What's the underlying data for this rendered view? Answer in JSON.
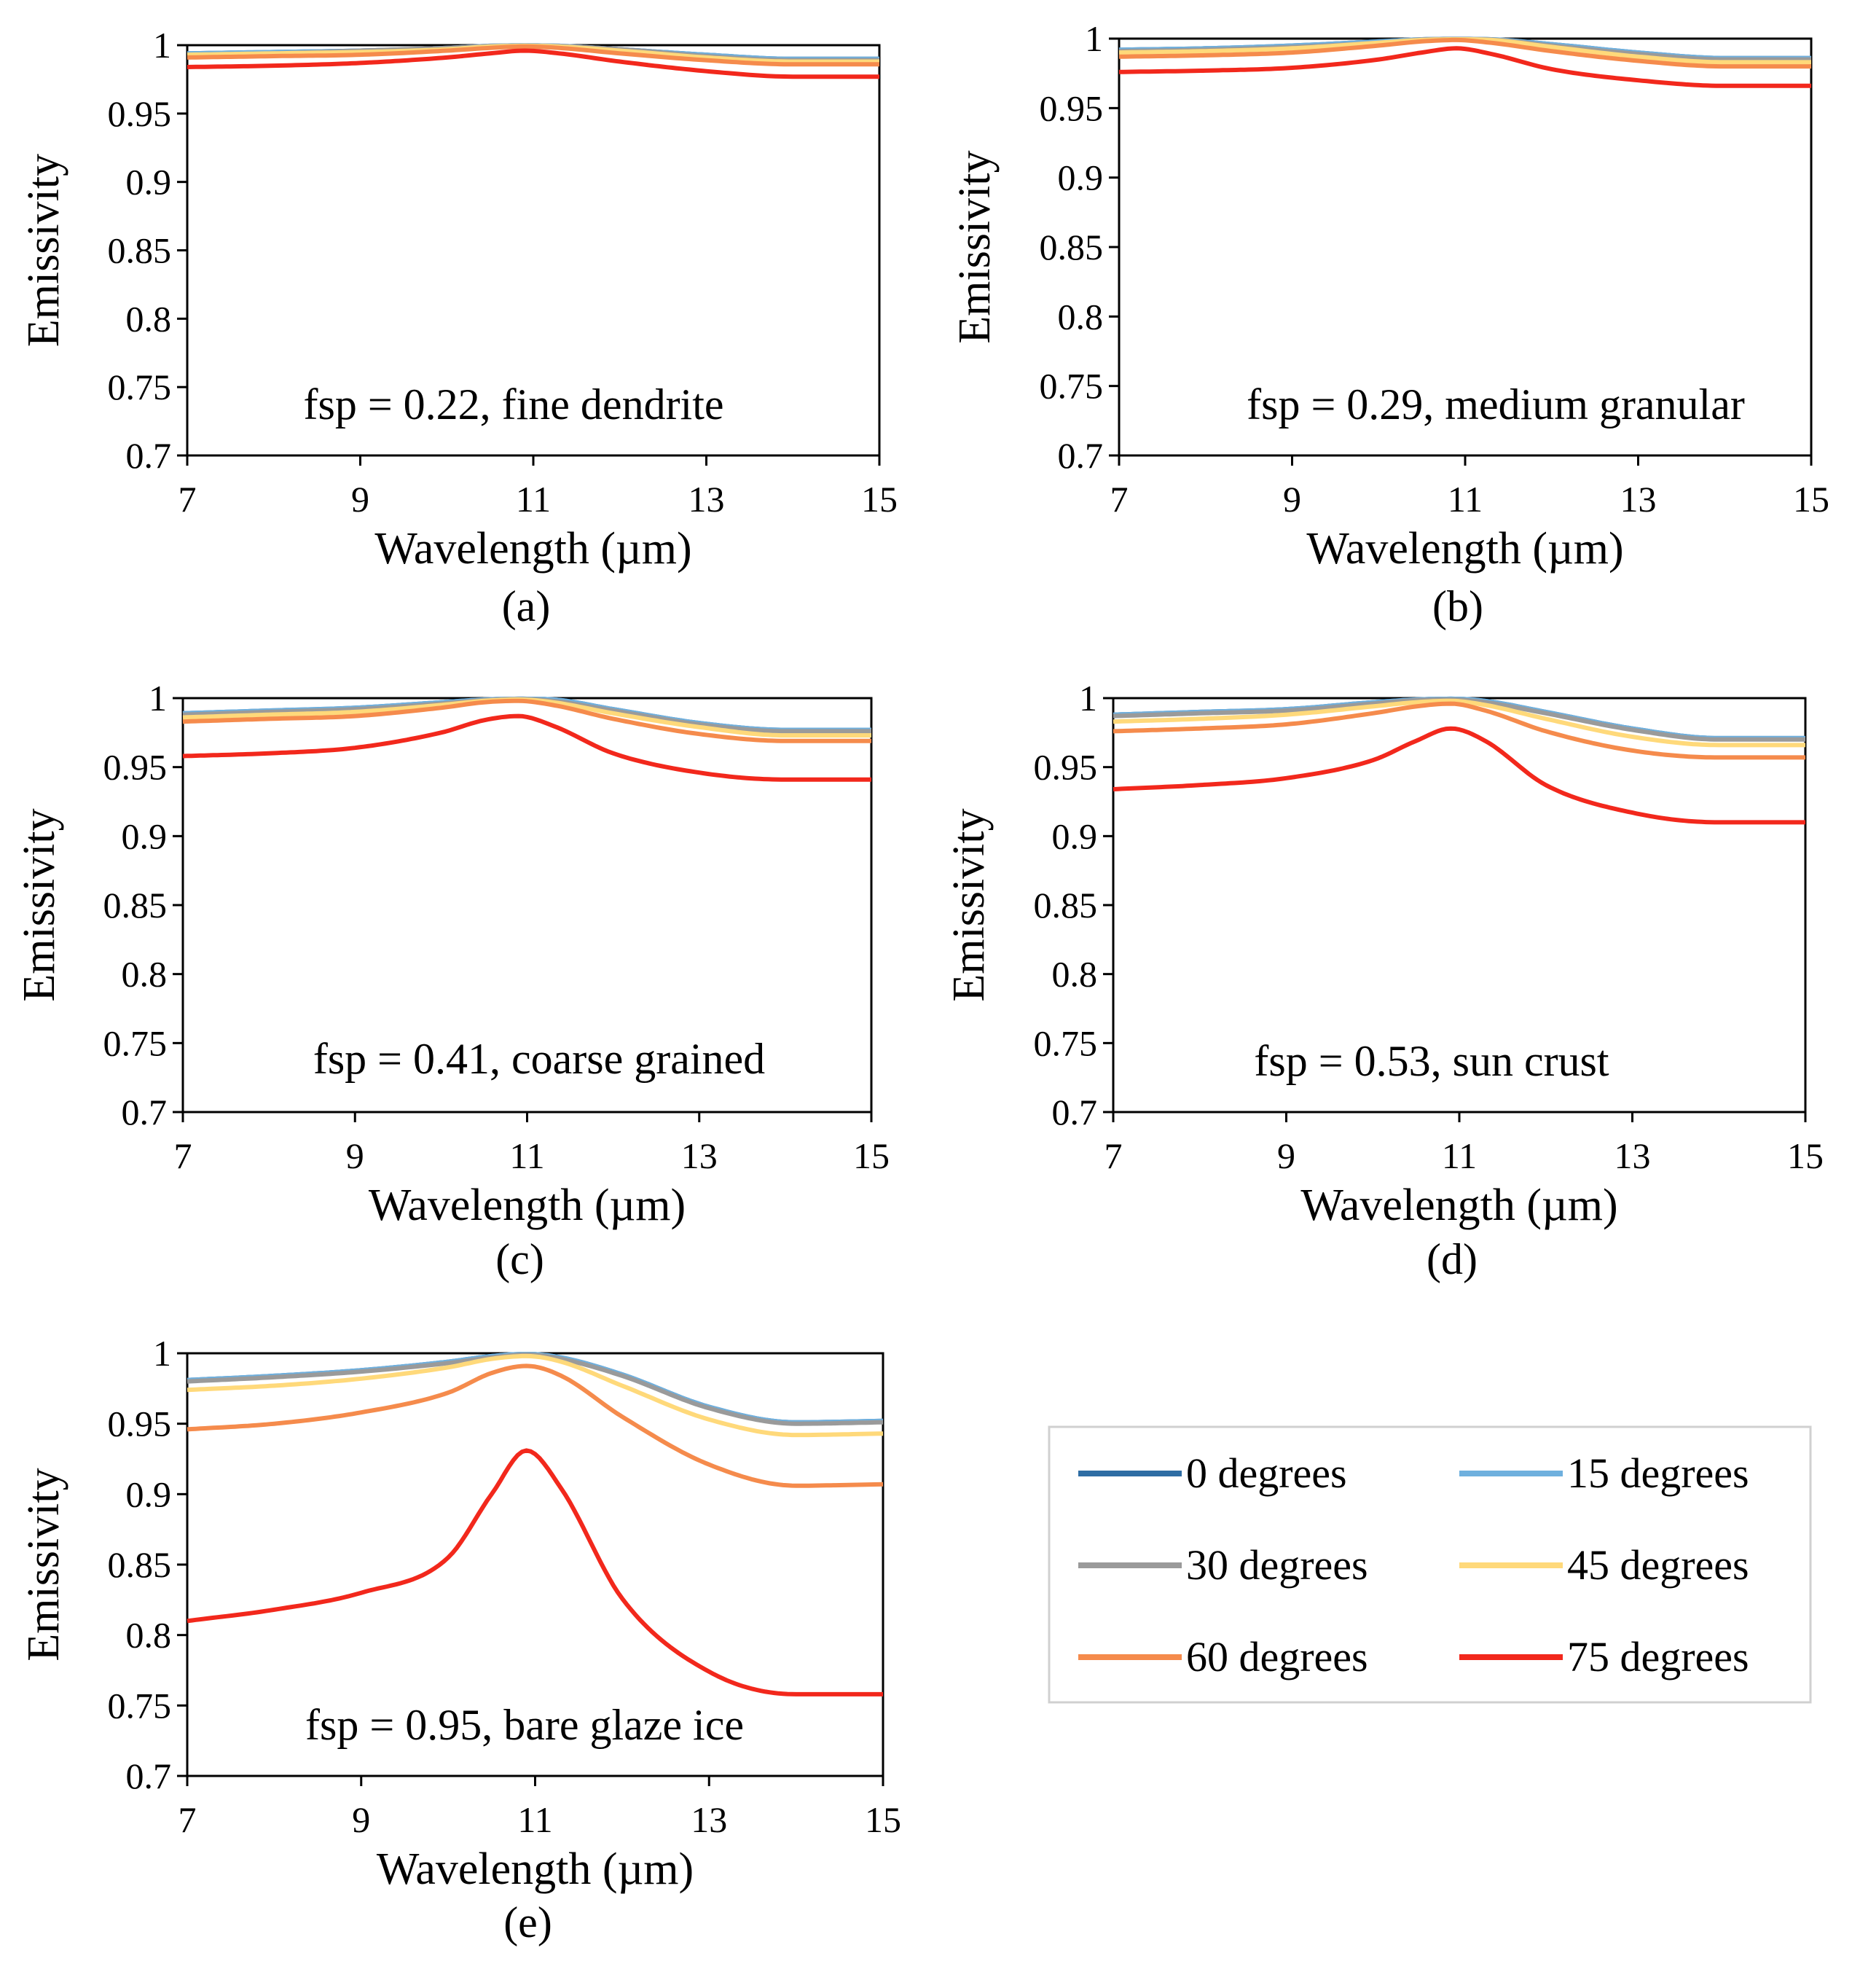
{
  "figure": {
    "legend": {
      "entries": [
        {
          "label": "0 degrees",
          "color": "#2E6DA4"
        },
        {
          "label": "15 degrees",
          "color": "#6FB0DE"
        },
        {
          "label": "30 degrees",
          "color": "#9A9A9A"
        },
        {
          "label": "45 degrees",
          "color": "#FFD97A"
        },
        {
          "label": "60 degrees",
          "color": "#F58B4C"
        },
        {
          "label": "75 degrees",
          "color": "#F2281C"
        }
      ]
    }
  },
  "chart_data": [
    {
      "type": "line",
      "panel": "(a)",
      "annotation": "fsp = 0.22, fine dendrite",
      "xlabel": "Wavelength (µm)",
      "ylabel": "Emissivity",
      "xlim": [
        7,
        15
      ],
      "ylim": [
        0.7,
        1.0
      ],
      "xticks": [
        "7",
        "9",
        "11",
        "13",
        "15"
      ],
      "yticks": [
        "0.7",
        "0.75",
        "0.8",
        "0.85",
        "0.9",
        "0.95",
        "1"
      ],
      "x": [
        7,
        8,
        9,
        10,
        10.5,
        10.9,
        11.3,
        12,
        13,
        14,
        15
      ],
      "series": [
        {
          "name": "0 degrees",
          "values": [
            0.994,
            0.995,
            0.996,
            0.998,
            0.9995,
            0.9998,
            0.9995,
            0.997,
            0.993,
            0.99,
            0.99
          ]
        },
        {
          "name": "15 degrees",
          "values": [
            0.994,
            0.995,
            0.996,
            0.998,
            0.9995,
            0.9998,
            0.9995,
            0.997,
            0.993,
            0.99,
            0.99
          ]
        },
        {
          "name": "30 degrees",
          "values": [
            0.993,
            0.994,
            0.996,
            0.998,
            0.9993,
            0.9997,
            0.9993,
            0.997,
            0.992,
            0.989,
            0.989
          ]
        },
        {
          "name": "45 degrees",
          "values": [
            0.993,
            0.994,
            0.995,
            0.997,
            0.999,
            0.9995,
            0.999,
            0.996,
            0.991,
            0.988,
            0.988
          ]
        },
        {
          "name": "60 degrees",
          "values": [
            0.991,
            0.992,
            0.993,
            0.996,
            0.998,
            0.999,
            0.998,
            0.994,
            0.989,
            0.986,
            0.986
          ]
        },
        {
          "name": "75 degrees",
          "values": [
            0.984,
            0.985,
            0.987,
            0.991,
            0.994,
            0.996,
            0.994,
            0.988,
            0.981,
            0.977,
            0.977
          ]
        }
      ]
    },
    {
      "type": "line",
      "panel": "(b)",
      "annotation": "fsp = 0.29, medium granular",
      "xlabel": "Wavelength (µm)",
      "ylabel": "Emissivity",
      "xlim": [
        7,
        15
      ],
      "ylim": [
        0.7,
        1.0
      ],
      "xticks": [
        "7",
        "9",
        "11",
        "13",
        "15"
      ],
      "yticks": [
        "0.7",
        "0.75",
        "0.8",
        "0.85",
        "0.9",
        "0.95",
        "1"
      ],
      "x": [
        7,
        8,
        9,
        10,
        10.5,
        10.9,
        11.3,
        12,
        13,
        14,
        15
      ],
      "series": [
        {
          "name": "0 degrees",
          "values": [
            0.992,
            0.993,
            0.995,
            0.998,
            0.9995,
            0.9998,
            0.9995,
            0.996,
            0.99,
            0.986,
            0.986
          ]
        },
        {
          "name": "15 degrees",
          "values": [
            0.992,
            0.993,
            0.995,
            0.998,
            0.9995,
            0.9998,
            0.9995,
            0.996,
            0.99,
            0.986,
            0.986
          ]
        },
        {
          "name": "30 degrees",
          "values": [
            0.991,
            0.992,
            0.994,
            0.997,
            0.9993,
            0.9997,
            0.9993,
            0.995,
            0.989,
            0.985,
            0.985
          ]
        },
        {
          "name": "45 degrees",
          "values": [
            0.99,
            0.991,
            0.993,
            0.997,
            0.999,
            0.9995,
            0.999,
            0.994,
            0.987,
            0.983,
            0.983
          ]
        },
        {
          "name": "60 degrees",
          "values": [
            0.987,
            0.988,
            0.99,
            0.995,
            0.998,
            0.999,
            0.997,
            0.991,
            0.984,
            0.98,
            0.98
          ]
        },
        {
          "name": "75 degrees",
          "values": [
            0.976,
            0.977,
            0.979,
            0.985,
            0.99,
            0.993,
            0.989,
            0.978,
            0.97,
            0.966,
            0.966
          ]
        }
      ]
    },
    {
      "type": "line",
      "panel": "(c)",
      "annotation": "fsp = 0.41, coarse grained",
      "xlabel": "Wavelength (µm)",
      "ylabel": "Emissivity",
      "xlim": [
        7,
        15
      ],
      "ylim": [
        0.7,
        1.0
      ],
      "xticks": [
        "7",
        "9",
        "11",
        "13",
        "15"
      ],
      "yticks": [
        "0.7",
        "0.75",
        "0.8",
        "0.85",
        "0.9",
        "0.95",
        "1"
      ],
      "x": [
        7,
        8,
        9,
        10,
        10.5,
        10.9,
        11.3,
        12,
        13,
        14,
        15
      ],
      "series": [
        {
          "name": "0 degrees",
          "values": [
            0.989,
            0.991,
            0.993,
            0.997,
            0.999,
            0.9995,
            0.999,
            0.992,
            0.982,
            0.977,
            0.977
          ]
        },
        {
          "name": "15 degrees",
          "values": [
            0.989,
            0.991,
            0.993,
            0.997,
            0.999,
            0.9995,
            0.999,
            0.992,
            0.982,
            0.977,
            0.977
          ]
        },
        {
          "name": "30 degrees",
          "values": [
            0.988,
            0.99,
            0.992,
            0.996,
            0.9985,
            0.9993,
            0.998,
            0.991,
            0.981,
            0.976,
            0.976
          ]
        },
        {
          "name": "45 degrees",
          "values": [
            0.986,
            0.988,
            0.99,
            0.995,
            0.998,
            0.999,
            0.997,
            0.989,
            0.979,
            0.973,
            0.973
          ]
        },
        {
          "name": "60 degrees",
          "values": [
            0.983,
            0.985,
            0.987,
            0.993,
            0.997,
            0.998,
            0.995,
            0.985,
            0.974,
            0.969,
            0.969
          ]
        },
        {
          "name": "75 degrees",
          "values": [
            0.958,
            0.96,
            0.964,
            0.975,
            0.984,
            0.987,
            0.98,
            0.96,
            0.946,
            0.941,
            0.941
          ]
        }
      ]
    },
    {
      "type": "line",
      "panel": "(d)",
      "annotation": "fsp = 0.53, sun crust",
      "xlabel": "Wavelength (µm)",
      "ylabel": "Emissivity",
      "xlim": [
        7,
        15
      ],
      "ylim": [
        0.7,
        1.0
      ],
      "xticks": [
        "7",
        "9",
        "11",
        "13",
        "15"
      ],
      "yticks": [
        "0.7",
        "0.75",
        "0.8",
        "0.85",
        "0.9",
        "0.95",
        "1"
      ],
      "x": [
        7,
        8,
        9,
        10,
        10.5,
        10.9,
        11.3,
        12,
        13,
        14,
        15
      ],
      "series": [
        {
          "name": "0 degrees",
          "values": [
            0.988,
            0.99,
            0.992,
            0.997,
            0.999,
            0.9995,
            0.998,
            0.99,
            0.978,
            0.971,
            0.971
          ]
        },
        {
          "name": "15 degrees",
          "values": [
            0.988,
            0.99,
            0.992,
            0.997,
            0.999,
            0.9995,
            0.998,
            0.99,
            0.978,
            0.971,
            0.971
          ]
        },
        {
          "name": "30 degrees",
          "values": [
            0.987,
            0.989,
            0.991,
            0.996,
            0.9985,
            0.999,
            0.997,
            0.989,
            0.977,
            0.97,
            0.97
          ]
        },
        {
          "name": "45 degrees",
          "values": [
            0.983,
            0.985,
            0.988,
            0.994,
            0.997,
            0.998,
            0.995,
            0.985,
            0.972,
            0.966,
            0.966
          ]
        },
        {
          "name": "60 degrees",
          "values": [
            0.976,
            0.978,
            0.981,
            0.989,
            0.994,
            0.996,
            0.991,
            0.976,
            0.962,
            0.957,
            0.957
          ]
        },
        {
          "name": "75 degrees",
          "values": [
            0.934,
            0.937,
            0.942,
            0.955,
            0.969,
            0.978,
            0.969,
            0.937,
            0.917,
            0.91,
            0.91
          ]
        }
      ]
    },
    {
      "type": "line",
      "panel": "(e)",
      "annotation": "fsp = 0.95, bare glaze ice",
      "xlabel": "Wavelength (µm)",
      "ylabel": "Emissivity",
      "xlim": [
        7,
        15
      ],
      "ylim": [
        0.7,
        1.0
      ],
      "xticks": [
        "7",
        "9",
        "11",
        "13",
        "15"
      ],
      "yticks": [
        "0.7",
        "0.75",
        "0.8",
        "0.85",
        "0.9",
        "0.95",
        "1"
      ],
      "x": [
        7,
        8,
        9,
        10,
        10.5,
        10.9,
        11.3,
        12,
        13,
        14,
        15
      ],
      "series": [
        {
          "name": "0 degrees",
          "values": [
            0.981,
            0.984,
            0.988,
            0.994,
            0.998,
            0.9995,
            0.997,
            0.985,
            0.962,
            0.951,
            0.952
          ]
        },
        {
          "name": "15 degrees",
          "values": [
            0.981,
            0.984,
            0.988,
            0.994,
            0.998,
            0.9995,
            0.997,
            0.985,
            0.962,
            0.951,
            0.952
          ]
        },
        {
          "name": "30 degrees",
          "values": [
            0.98,
            0.983,
            0.987,
            0.993,
            0.997,
            0.999,
            0.996,
            0.984,
            0.961,
            0.95,
            0.951
          ]
        },
        {
          "name": "45 degrees",
          "values": [
            0.974,
            0.977,
            0.982,
            0.99,
            0.996,
            0.998,
            0.994,
            0.977,
            0.953,
            0.942,
            0.943
          ]
        },
        {
          "name": "60 degrees",
          "values": [
            0.946,
            0.95,
            0.958,
            0.972,
            0.986,
            0.991,
            0.984,
            0.955,
            0.921,
            0.906,
            0.907
          ]
        },
        {
          "name": "75 degrees",
          "values": [
            0.81,
            0.818,
            0.83,
            0.855,
            0.9,
            0.931,
            0.904,
            0.826,
            0.774,
            0.758,
            0.758
          ]
        }
      ]
    }
  ]
}
